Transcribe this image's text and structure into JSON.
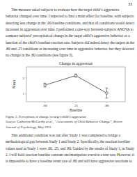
{
  "page_number": "33",
  "top_text": [
    "This measure asked subjects to evaluate how the target child’s aggressive",
    "behavior changed over time. I expected to find a main effect for baseline, with subjects",
    "detecting less change in the .00-baseline conditions, and that all conditions would detect",
    "increases in aggression over time. I performed a one-way between-subjects ANOVA to",
    "compare subjects’ perception of change in the target child’s aggressive behavior as a",
    "function of the child’s baseline reaction rate. Subjects did indeed detect the targets in the",
    ".80 and .25 conditions as increasing over time in aggressive behavior, but they detected",
    "no change in the .80 conditions (see figure 3)."
  ],
  "caption": "Figure 3. Perceptions of change in target child’s aggression",
  "source": [
    "Source: Catherine McCarthy et al., “Assessments of Child Behavior Change”, Brown",
    "Journal of Psychology, May 2011."
  ],
  "bottom_text": [
    "This additional condition was run after Study 1 was completed to bridge a",
    "methodological gap between Study 1 and Study 2. Specifically, the reaction baseline",
    "values used in Study 1 were .00, .25, and .80. Guided by the results of Study 1, in Study",
    "2, I will hold reaction baseline constant and manipulate aversive-event rate. However, it",
    "is impossible to have a baseline event rate of .80 and still have aggressive reactions to"
  ],
  "chart_data": {
    "type": "line",
    "title": "Change in aggression",
    "x_label": "Baseline",
    "y_label": "Mean",
    "categories": [
      ".00",
      ".25",
      ".80"
    ],
    "values": [
      1.55,
      2.15,
      1.05
    ],
    "errors": [
      0.12,
      0.1,
      0.32
    ],
    "color": "#555555",
    "marker": "circle",
    "ylim": [
      0.5,
      2.7
    ],
    "yticks": [
      1,
      2
    ],
    "grid": false
  }
}
